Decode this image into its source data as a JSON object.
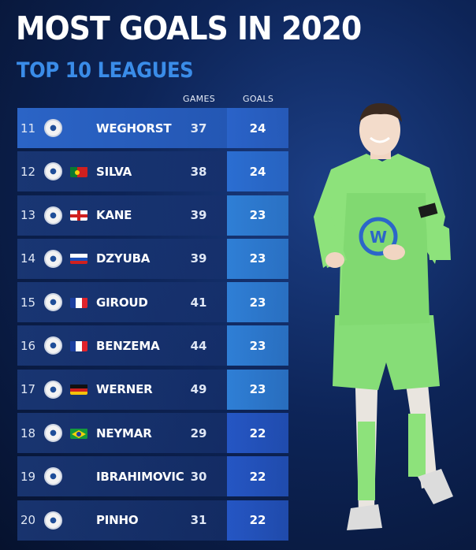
{
  "title": "MOST GOALS IN 2020",
  "subtitle": "TOP 10 LEAGUES",
  "columns": {
    "games": "GAMES",
    "goals": "GOALS"
  },
  "rows": [
    {
      "rank": "11",
      "name": "WEGHORST",
      "games": "37",
      "goals": "24",
      "club_icon": "wolfsburg-crest-icon",
      "flag_icon": "none",
      "goals_color": "#2a63c9"
    },
    {
      "rank": "12",
      "name": "SILVA",
      "games": "38",
      "goals": "24",
      "club_icon": "eintracht-frankfurt-crest-icon",
      "flag_icon": "portugal-flag-icon",
      "goals_color": "#2b6ed2"
    },
    {
      "rank": "13",
      "name": "KANE",
      "games": "39",
      "goals": "23",
      "club_icon": "tottenham-crest-icon",
      "flag_icon": "england-flag-icon",
      "goals_color": "#2f7fd6"
    },
    {
      "rank": "14",
      "name": "DZYUBA",
      "games": "39",
      "goals": "23",
      "club_icon": "zenit-crest-icon",
      "flag_icon": "russia-flag-icon",
      "goals_color": "#2f7fd6"
    },
    {
      "rank": "15",
      "name": "GIROUD",
      "games": "41",
      "goals": "23",
      "club_icon": "chelsea-crest-icon",
      "flag_icon": "france-flag-icon",
      "goals_color": "#2f7fd6"
    },
    {
      "rank": "16",
      "name": "BENZEMA",
      "games": "44",
      "goals": "23",
      "club_icon": "real-madrid-crest-icon",
      "flag_icon": "france-flag-icon",
      "goals_color": "#2f7fd6"
    },
    {
      "rank": "17",
      "name": "WERNER",
      "games": "49",
      "goals": "23",
      "club_icon": "leipzig-chelsea-crest-icon",
      "flag_icon": "germany-flag-icon",
      "goals_color": "#2f7fd6"
    },
    {
      "rank": "18",
      "name": "NEYMAR",
      "games": "29",
      "goals": "22",
      "club_icon": "psg-crest-icon",
      "flag_icon": "brazil-flag-icon",
      "goals_color": "#2556c4"
    },
    {
      "rank": "19",
      "name": "IBRAHIMOVIC",
      "games": "30",
      "goals": "22",
      "club_icon": "ac-milan-crest-icon",
      "flag_icon": "none",
      "goals_color": "#2556c4"
    },
    {
      "rank": "20",
      "name": "PINHO",
      "games": "31",
      "goals": "22",
      "club_icon": "maritimo-crest-icon",
      "flag_icon": "none",
      "goals_color": "#2556c4"
    }
  ],
  "colors": {
    "accent": "#3a8ce8",
    "background": "#0d2457",
    "highlight": "#2b64c6",
    "kit_green": "#8de27b"
  }
}
